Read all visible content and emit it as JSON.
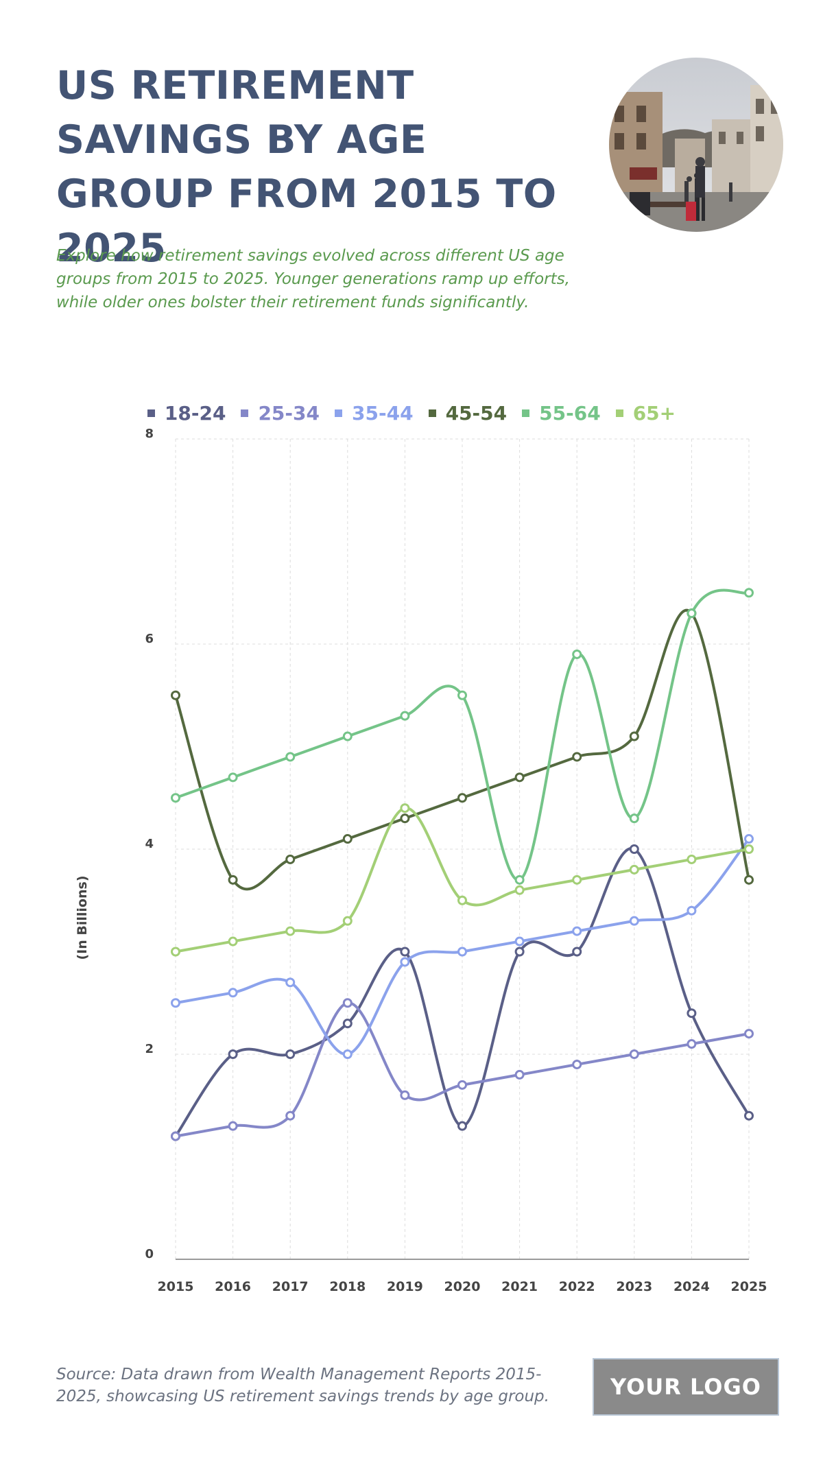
{
  "header": {
    "title": "US RETIREMENT SAVINGS BY AGE GROUP FROM 2015 TO 2025",
    "subtitle": "Explore how retirement savings evolved across different US age groups from 2015 to 2025. Younger generations ramp up efforts, while older ones bolster their retirement funds significantly."
  },
  "footer": {
    "source": "Source: Data drawn from Wealth Management Reports 2015-2025, showcasing US retirement savings trends by age group.",
    "logo_text": "YOUR LOGO"
  },
  "chart_data": {
    "type": "line",
    "title": "US RETIREMENT SAVINGS BY AGE GROUP FROM 2015 TO 2025",
    "xlabel": "",
    "ylabel": "(In Billions)",
    "x": [
      "2015",
      "2016",
      "2017",
      "2018",
      "2019",
      "2020",
      "2021",
      "2022",
      "2023",
      "2024",
      "2025"
    ],
    "ylim": [
      0,
      8
    ],
    "yticks": [
      0,
      2,
      4,
      6,
      8
    ],
    "grid": true,
    "legend_position": "top",
    "series": [
      {
        "name": "18-24",
        "color": "#5a5f87",
        "values": [
          1.2,
          2.0,
          2.0,
          2.3,
          3.0,
          1.3,
          3.0,
          3.0,
          4.0,
          2.4,
          1.4
        ]
      },
      {
        "name": "25-34",
        "color": "#8487c8",
        "values": [
          1.2,
          1.3,
          1.4,
          2.5,
          1.6,
          1.7,
          1.8,
          1.9,
          2.0,
          2.1,
          2.2
        ]
      },
      {
        "name": "35-44",
        "color": "#8ba2ec",
        "values": [
          2.5,
          2.6,
          2.7,
          2.0,
          2.9,
          3.0,
          3.1,
          3.2,
          3.3,
          3.4,
          4.1
        ]
      },
      {
        "name": "45-54",
        "color": "#54693f",
        "values": [
          5.5,
          3.7,
          3.9,
          4.1,
          4.3,
          4.5,
          4.7,
          4.9,
          5.1,
          6.3,
          3.7
        ]
      },
      {
        "name": "55-64",
        "color": "#74c488",
        "values": [
          4.5,
          4.7,
          4.9,
          5.1,
          5.3,
          5.5,
          3.7,
          5.9,
          4.3,
          6.3,
          6.5
        ]
      },
      {
        "name": "65+",
        "color": "#a3cf76",
        "values": [
          3.0,
          3.1,
          3.2,
          3.3,
          4.4,
          3.5,
          3.6,
          3.7,
          3.8,
          3.9,
          4.0
        ]
      }
    ]
  }
}
